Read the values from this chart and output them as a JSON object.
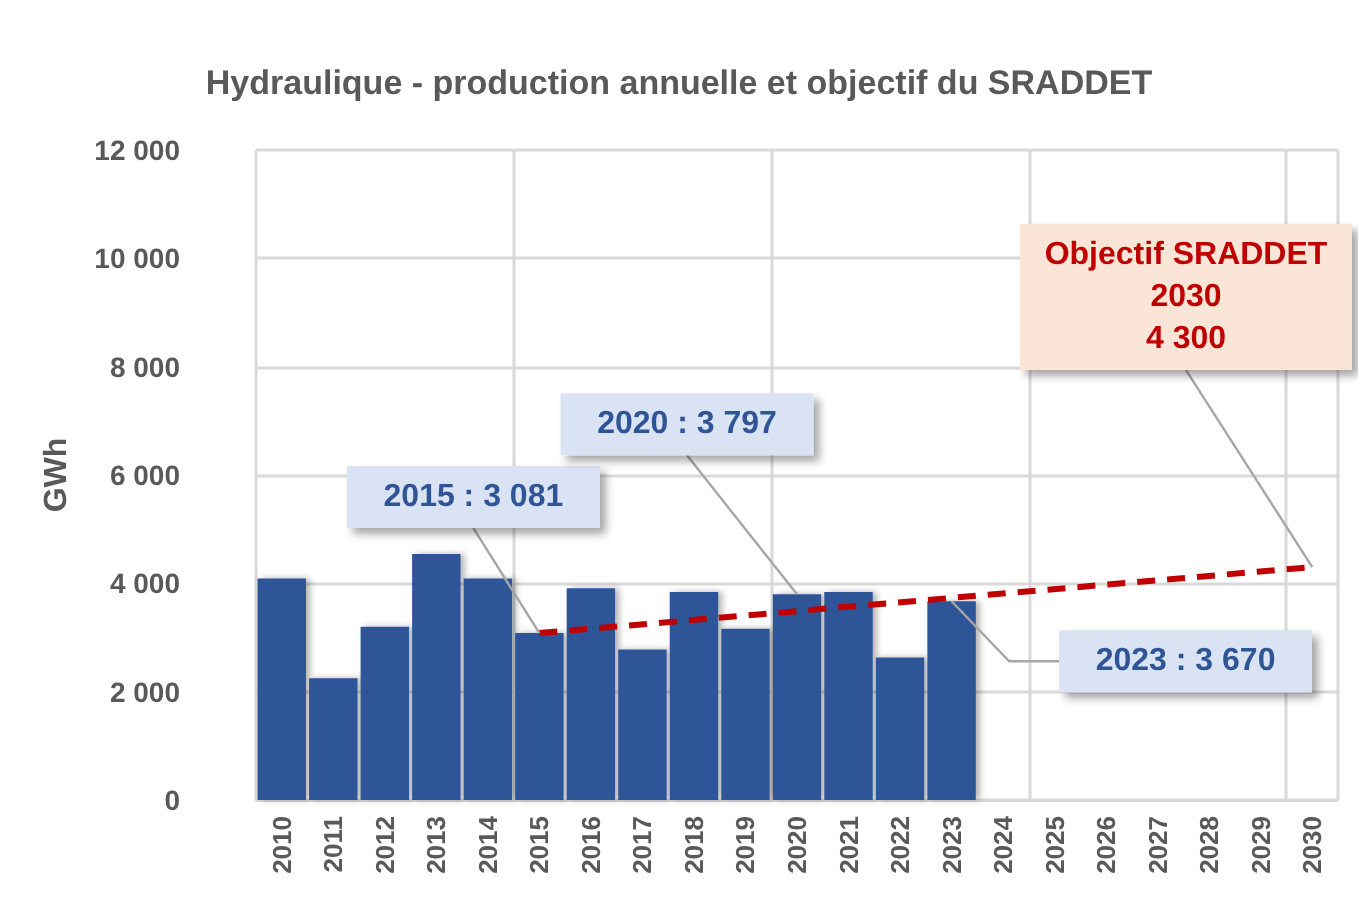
{
  "chart_data": {
    "type": "bar",
    "title": "Hydraulique - production annuelle et objectif du SRADDET",
    "ylabel": "GWh",
    "categories": [
      "2010",
      "2011",
      "2012",
      "2013",
      "2014",
      "2015",
      "2016",
      "2017",
      "2018",
      "2019",
      "2020",
      "2021",
      "2022",
      "2023",
      "2024",
      "2025",
      "2026",
      "2027",
      "2028",
      "2029",
      "2030"
    ],
    "series": [
      {
        "color": "#2f5597",
        "values": [
          4090,
          2250,
          3200,
          4540,
          4090,
          3081,
          3910,
          2780,
          3840,
          3160,
          3797,
          3840,
          2630,
          3670,
          null,
          null,
          null,
          null,
          null,
          null,
          null
        ]
      },
      {
        "type": "line",
        "color": "#c00000",
        "line_style": "dashed",
        "marker": "none",
        "values": [
          null,
          null,
          null,
          null,
          null,
          3081,
          null,
          null,
          null,
          null,
          null,
          null,
          null,
          null,
          null,
          null,
          null,
          null,
          null,
          null,
          4300
        ]
      }
    ],
    "ylim": [
      0,
      12000
    ],
    "yticks": [
      {
        "value": 0,
        "label": "0"
      },
      {
        "value": 2000,
        "label": "2 000"
      },
      {
        "value": 4000,
        "label": "4 000"
      },
      {
        "value": 6000,
        "label": "6 000"
      },
      {
        "value": 8000,
        "label": "8 000"
      },
      {
        "value": 10000,
        "label": "10 000"
      },
      {
        "value": 12000,
        "label": "12 000"
      }
    ],
    "grid": true,
    "annotations": [
      {
        "text": "2015 : 3 081",
        "x": "2015",
        "y": 3081
      },
      {
        "text": "2020 : 3 797",
        "x": "2020",
        "y": 3797
      },
      {
        "text": "2023 : 3 670",
        "x": "2023",
        "y": 3670
      },
      {
        "text": "Objectif SRADDET\n2030\n4 300",
        "x": "2030",
        "y": 4300
      }
    ]
  }
}
